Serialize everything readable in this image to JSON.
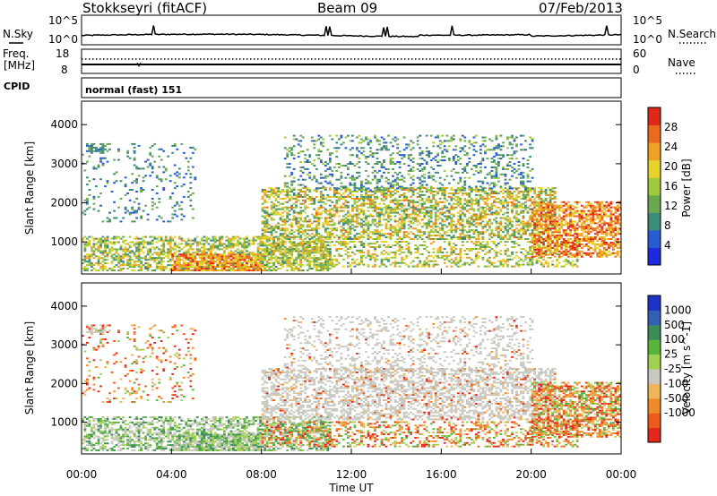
{
  "header": {
    "station": "Stokkseyri (fitACF)",
    "beam": "Beam 09",
    "date": "07/Feb/2013"
  },
  "noise_panel": {
    "left_label": "N.Sky",
    "right_label": "N.Search",
    "tick_top": "10^5",
    "tick_bottom": "10^0"
  },
  "freq_panel": {
    "left_label_1": "Freq.",
    "left_label_2": "[MHz]",
    "left_tick_top": "18",
    "left_tick_bottom": "8",
    "right_label": "Nave",
    "right_tick_top": "60",
    "right_tick_bottom": "0"
  },
  "cpid_panel": {
    "label": "CPID",
    "text": "normal (fast) 151"
  },
  "colors": {
    "power_scale": [
      "#1e28dc",
      "#285ad2",
      "#3c8c7a",
      "#6aa850",
      "#a0c83c",
      "#e6d228",
      "#f0a024",
      "#ec6a1e",
      "#e02818"
    ],
    "velocity_scale": [
      "#e4281c",
      "#ee5a1c",
      "#f08c28",
      "#f0b45a",
      "#c8c8c0",
      "#a0d250",
      "#5ab43c",
      "#3c8c5a",
      "#3260b4",
      "#1e32c8"
    ],
    "ground_scatter": "#c8c8c0"
  },
  "chart_data": [
    {
      "type": "heatmap",
      "name": "power",
      "ylabel": "Slant Range [km]",
      "yticks": [
        1000,
        2000,
        3000,
        4000
      ],
      "ylim": [
        180,
        4600
      ],
      "x_range_hours": [
        0,
        24
      ],
      "colorbar": {
        "label": "Power [dB]",
        "ticks": [
          4,
          8,
          12,
          16,
          20,
          24,
          28
        ],
        "range": [
          0,
          32
        ]
      }
    },
    {
      "type": "heatmap",
      "name": "velocity",
      "ylabel": "Slant Range [km]",
      "yticks": [
        1000,
        2000,
        3000,
        4000
      ],
      "ylim": [
        180,
        4600
      ],
      "x_range_hours": [
        0,
        24
      ],
      "xlabel": "Time UT",
      "xticks": [
        "00:00",
        "04:00",
        "08:00",
        "12:00",
        "16:00",
        "20:00",
        "00:00"
      ],
      "colorbar": {
        "label": "Velocity [m s^-1]",
        "ticks": [
          "1000",
          "500",
          "100",
          "25",
          "-25",
          "-100",
          "-500",
          "-1000"
        ]
      }
    }
  ]
}
